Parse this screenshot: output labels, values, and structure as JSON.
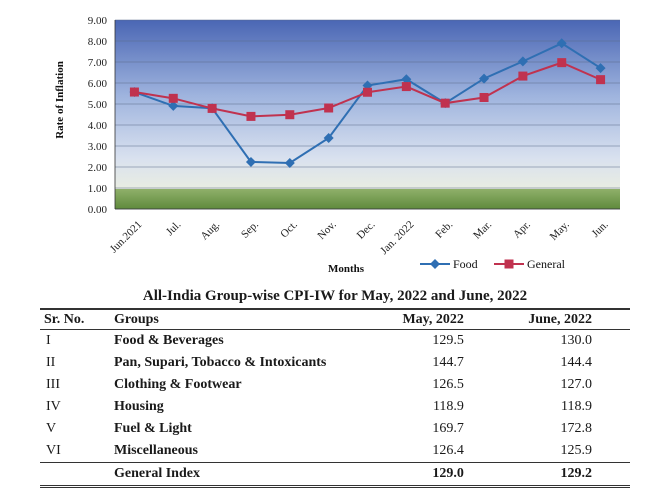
{
  "chart_data": {
    "type": "line",
    "ylabel": "Rate of Inflation",
    "xlabel": "Months",
    "ylim": [
      0,
      9
    ],
    "y_ticks": [
      "0.00",
      "1.00",
      "2.00",
      "3.00",
      "4.00",
      "5.00",
      "6.00",
      "7.00",
      "8.00",
      "9.00"
    ],
    "categories": [
      "Jun.2021",
      "Jul.",
      "Aug.",
      "Sep.",
      "Oct.",
      "Nov.",
      "Dec.",
      "Jan. 2022",
      "Feb.",
      "Mar.",
      "Apr.",
      "May.",
      "Jun."
    ],
    "series": [
      {
        "name": "Food",
        "color": "#2f6fb3",
        "marker": "diamond",
        "values": [
          5.57,
          4.91,
          4.8,
          2.24,
          2.19,
          3.38,
          5.88,
          6.18,
          5.04,
          6.21,
          7.03,
          7.89,
          6.71
        ]
      },
      {
        "name": "General",
        "color": "#c0324f",
        "marker": "square",
        "values": [
          5.57,
          5.27,
          4.79,
          4.41,
          4.49,
          4.81,
          5.56,
          5.83,
          5.04,
          5.31,
          6.33,
          6.97,
          6.16
        ]
      }
    ],
    "grid": true,
    "legend_position": "bottom-right"
  },
  "table": {
    "title": "All-India Group-wise CPI-IW for May, 2022 and June, 2022",
    "headers": {
      "sr": "Sr. No.",
      "groups": "Groups",
      "may": "May, 2022",
      "june": "June, 2022"
    },
    "rows": [
      {
        "sr": "I",
        "group": "Food & Beverages",
        "may": "129.5",
        "june": "130.0"
      },
      {
        "sr": "II",
        "group": "Pan, Supari, Tobacco & Intoxicants",
        "may": "144.7",
        "june": "144.4"
      },
      {
        "sr": "III",
        "group": "Clothing & Footwear",
        "may": "126.5",
        "june": "127.0"
      },
      {
        "sr": "IV",
        "group": "Housing",
        "may": "118.9",
        "june": "118.9"
      },
      {
        "sr": "V",
        "group": "Fuel & Light",
        "may": "169.7",
        "june": "172.8"
      },
      {
        "sr": "VI",
        "group": "Miscellaneous",
        "may": "126.4",
        "june": "125.9"
      }
    ],
    "total": {
      "sr": "",
      "group": "General Index",
      "may": "129.0",
      "june": "129.2"
    }
  }
}
